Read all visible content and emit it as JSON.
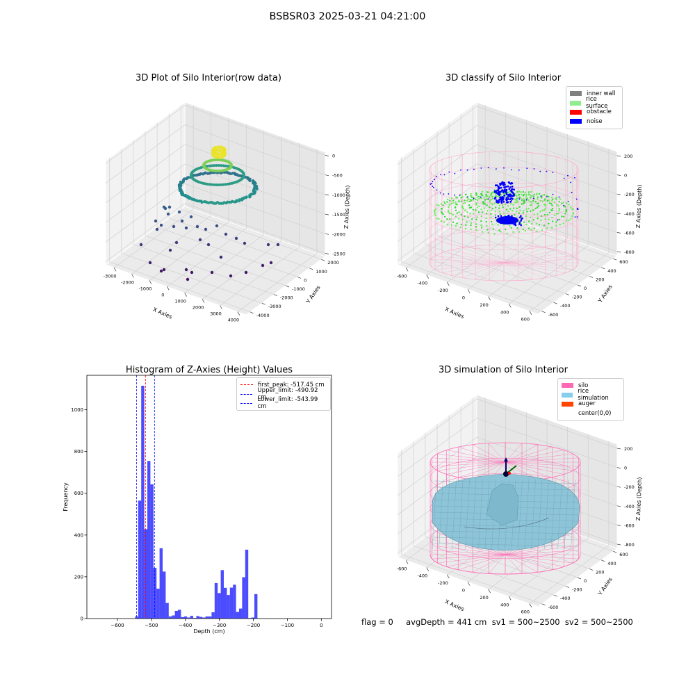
{
  "suptitle": "BSBSR03 2025-03-21 04:21:00",
  "status_text": "flag = 0     avgDepth = 441 cm  sv1 = 500~2500  sv2 = 500~2500",
  "chart_data": [
    {
      "type": "scatter3d",
      "title": "3D Plot of Silo Interior(row data)",
      "xlabel": "X Axies",
      "ylabel": "Y Axies",
      "zlabel": "Z Axies (Depth)",
      "x_ticks": [
        "-3000",
        "-2000",
        "-1000",
        "0",
        "1000",
        "2000",
        "3000",
        "4000"
      ],
      "y_ticks": [
        "-4000",
        "-3000",
        "-2000",
        "-1000",
        "0",
        "1000",
        "2000"
      ],
      "z_ticks": [
        "-2500",
        "-2000",
        "-1500",
        "-1000",
        "-500",
        "0"
      ],
      "colormap": "viridis"
    },
    {
      "type": "scatter3d",
      "title": "3D classify of Silo Interior",
      "xlabel": "X Axies",
      "ylabel": "Y Axies",
      "zlabel": "Z Axies (Depth)",
      "x_ticks": [
        "-600",
        "-400",
        "-200",
        "0",
        "200",
        "400",
        "600"
      ],
      "y_ticks": [
        "-600",
        "-400",
        "-200",
        "0",
        "200",
        "400",
        "600"
      ],
      "z_ticks": [
        "-800",
        "-600",
        "-400",
        "-200",
        "0",
        "200"
      ],
      "legend": [
        {
          "label": "inner wall",
          "color": "#808080"
        },
        {
          "label": "rice surface",
          "color": "#90ee90"
        },
        {
          "label": "obstacle",
          "color": "#ff0000"
        },
        {
          "label": "noise",
          "color": "#0000ff"
        }
      ]
    },
    {
      "type": "histogram",
      "title": "Histogram of Z-Axies (Height) Values",
      "xlabel": "Depth (cm)",
      "ylabel": "Frequency",
      "xlim": [
        -690,
        30
      ],
      "ylim": [
        0,
        1165
      ],
      "x_ticks": [
        -600,
        -500,
        -400,
        -300,
        -200,
        -100,
        0
      ],
      "y_ticks": [
        0,
        200,
        400,
        600,
        800,
        1000
      ],
      "bar_color": "#0000ff",
      "bins": [
        {
          "x0": -548,
          "x1": -539,
          "count": 10
        },
        {
          "x0": -539,
          "x1": -530,
          "count": 565
        },
        {
          "x0": -530,
          "x1": -521,
          "count": 1115
        },
        {
          "x0": -521,
          "x1": -512,
          "count": 428
        },
        {
          "x0": -512,
          "x1": -503,
          "count": 755
        },
        {
          "x0": -503,
          "x1": -494,
          "count": 643
        },
        {
          "x0": -494,
          "x1": -485,
          "count": 243
        },
        {
          "x0": -485,
          "x1": -476,
          "count": 143
        },
        {
          "x0": -476,
          "x1": -467,
          "count": 337
        },
        {
          "x0": -467,
          "x1": -458,
          "count": 225
        },
        {
          "x0": -458,
          "x1": -449,
          "count": 75
        },
        {
          "x0": -449,
          "x1": -440,
          "count": 10
        },
        {
          "x0": -440,
          "x1": -431,
          "count": 15
        },
        {
          "x0": -431,
          "x1": -422,
          "count": 37
        },
        {
          "x0": -422,
          "x1": -413,
          "count": 42
        },
        {
          "x0": -413,
          "x1": -404,
          "count": 7
        },
        {
          "x0": -404,
          "x1": -395,
          "count": 10
        },
        {
          "x0": -395,
          "x1": -386,
          "count": 5
        },
        {
          "x0": -386,
          "x1": -377,
          "count": 13
        },
        {
          "x0": -377,
          "x1": -368,
          "count": 3
        },
        {
          "x0": -368,
          "x1": -359,
          "count": 12
        },
        {
          "x0": -359,
          "x1": -350,
          "count": 8
        },
        {
          "x0": -350,
          "x1": -341,
          "count": 5
        },
        {
          "x0": -341,
          "x1": -332,
          "count": 10
        },
        {
          "x0": -332,
          "x1": -323,
          "count": 10
        },
        {
          "x0": -323,
          "x1": -314,
          "count": 30
        },
        {
          "x0": -314,
          "x1": -305,
          "count": 170
        },
        {
          "x0": -305,
          "x1": -296,
          "count": 122
        },
        {
          "x0": -296,
          "x1": -287,
          "count": 232
        },
        {
          "x0": -287,
          "x1": -278,
          "count": 147
        },
        {
          "x0": -278,
          "x1": -269,
          "count": 113
        },
        {
          "x0": -269,
          "x1": -260,
          "count": 148
        },
        {
          "x0": -260,
          "x1": -251,
          "count": 162
        },
        {
          "x0": -251,
          "x1": -242,
          "count": 32
        },
        {
          "x0": -242,
          "x1": -233,
          "count": 48
        },
        {
          "x0": -233,
          "x1": -224,
          "count": 198
        },
        {
          "x0": -224,
          "x1": -215,
          "count": 330
        },
        {
          "x0": -215,
          "x1": -206,
          "count": 3
        },
        {
          "x0": -206,
          "x1": -197,
          "count": 5
        },
        {
          "x0": -197,
          "x1": -188,
          "count": 117
        }
      ],
      "vlines": [
        {
          "x": -517.45,
          "color": "#ff0000",
          "label": "first_peak: -517.45 cm"
        },
        {
          "x": -490.92,
          "color": "#0000ff",
          "label": "Upper_limit: -490.92 cm"
        },
        {
          "x": -543.99,
          "color": "#0000ff",
          "label": "Lower_limit: -543.99 cm"
        }
      ]
    },
    {
      "type": "surface3d",
      "title": "3D simulation of Silo Interior",
      "xlabel": "X Axies",
      "ylabel": "Y Axies",
      "zlabel": "Z Axies (Depth)",
      "x_ticks": [
        "-600",
        "-400",
        "-200",
        "0",
        "200",
        "400",
        "600"
      ],
      "y_ticks": [
        "-600",
        "-400",
        "-200",
        "0",
        "200",
        "400",
        "600"
      ],
      "z_ticks": [
        "-800",
        "-600",
        "-400",
        "-200",
        "0",
        "200"
      ],
      "legend": [
        {
          "label": "silo",
          "color": "#ff69b4"
        },
        {
          "label": "rice simulation",
          "color": "#87ceeb"
        },
        {
          "label": "auger",
          "color": "#ff4500"
        },
        {
          "label": "center(0,0)",
          "color": ""
        }
      ]
    }
  ]
}
